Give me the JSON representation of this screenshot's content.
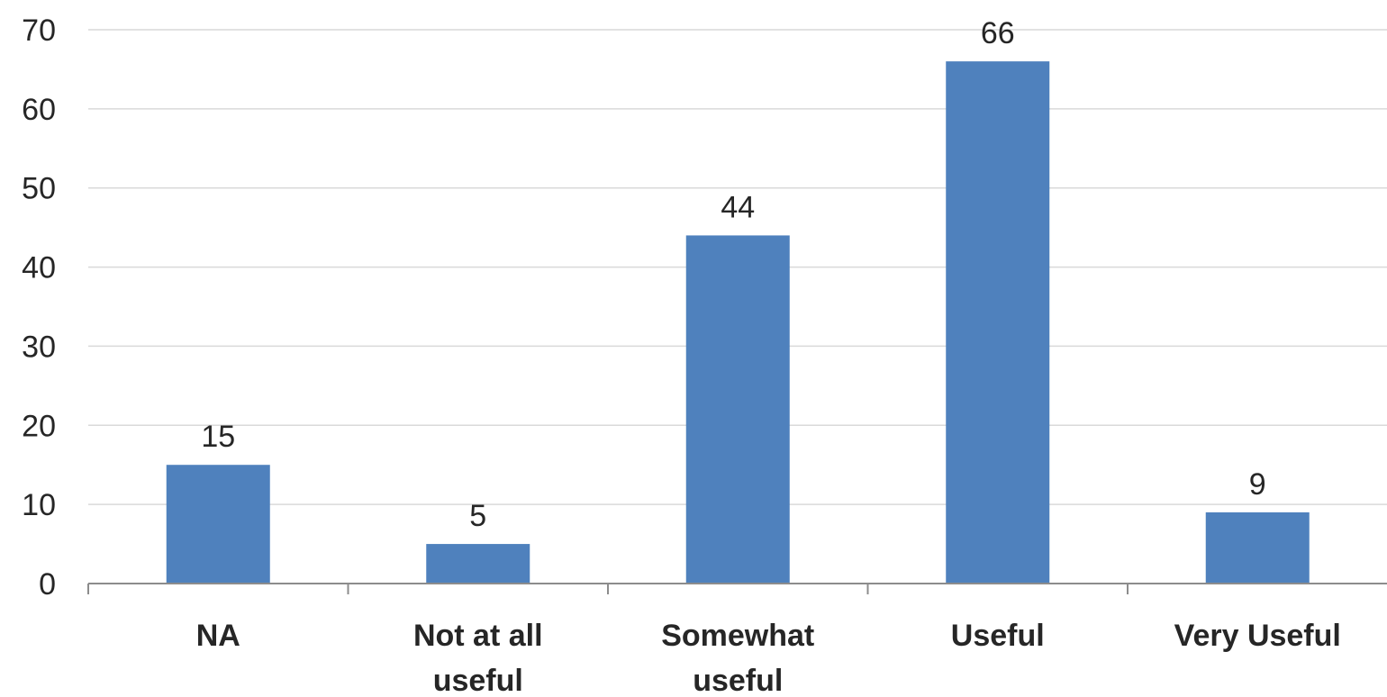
{
  "chart_data": {
    "type": "bar",
    "categories": [
      "NA",
      "Not at all useful",
      "Somewhat useful",
      "Useful",
      "Very Useful"
    ],
    "category_lines": [
      [
        "NA"
      ],
      [
        "Not at all",
        "useful"
      ],
      [
        "Somewhat",
        "useful"
      ],
      [
        "Useful"
      ],
      [
        "Very Useful"
      ]
    ],
    "values": [
      15,
      5,
      44,
      66,
      9
    ],
    "data_labels": [
      "15",
      "5",
      "44",
      "66",
      "9"
    ],
    "yticks": [
      0,
      10,
      20,
      30,
      40,
      50,
      60,
      70
    ],
    "ylim": [
      0,
      70
    ],
    "grid": true,
    "title": "",
    "xlabel": "",
    "ylabel": "",
    "bar_color": "#4f81bd"
  }
}
